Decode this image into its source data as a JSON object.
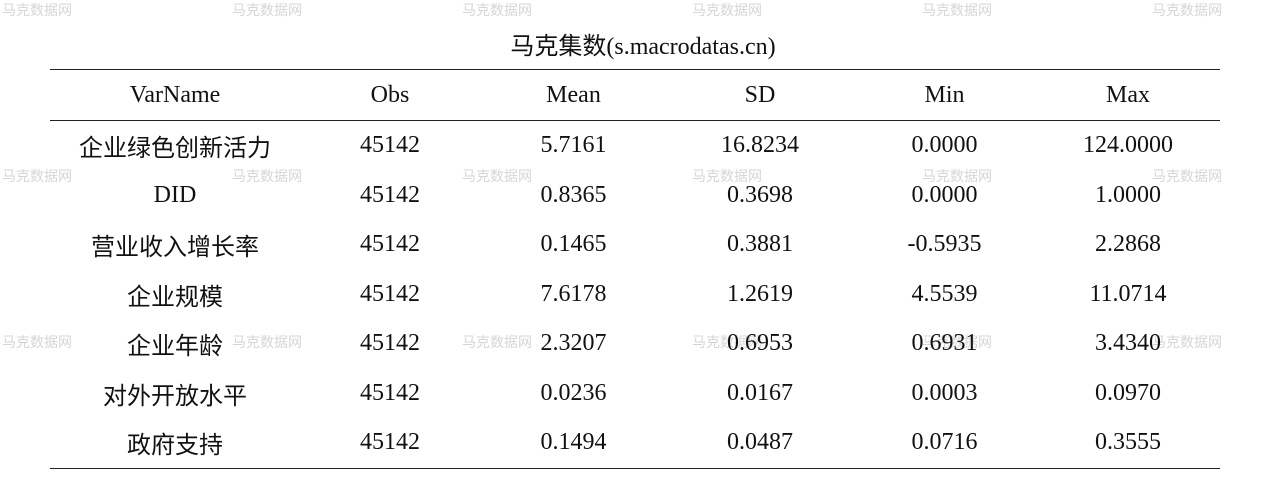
{
  "watermark": "马克数据网",
  "table": {
    "title": "马克集数(s.macrodatas.cn)",
    "headers": [
      "VarName",
      "Obs",
      "Mean",
      "SD",
      "Min",
      "Max"
    ],
    "rows": [
      [
        "企业绿色创新活力",
        "45142",
        "5.7161",
        "16.8234",
        "0.0000",
        "124.0000"
      ],
      [
        "DID",
        "45142",
        "0.8365",
        "0.3698",
        "0.0000",
        "1.0000"
      ],
      [
        "营业收入增长率",
        "45142",
        "0.1465",
        "0.3881",
        "-0.5935",
        "2.2868"
      ],
      [
        "企业规模",
        "45142",
        "7.6178",
        "1.2619",
        "4.5539",
        "11.0714"
      ],
      [
        "企业年龄",
        "45142",
        "2.3207",
        "0.6953",
        "0.6931",
        "3.4340"
      ],
      [
        "对外开放水平",
        "45142",
        "0.0236",
        "0.0167",
        "0.0003",
        "0.0970"
      ],
      [
        "政府支持",
        "45142",
        "0.1494",
        "0.0487",
        "0.0716",
        "0.3555"
      ]
    ]
  }
}
